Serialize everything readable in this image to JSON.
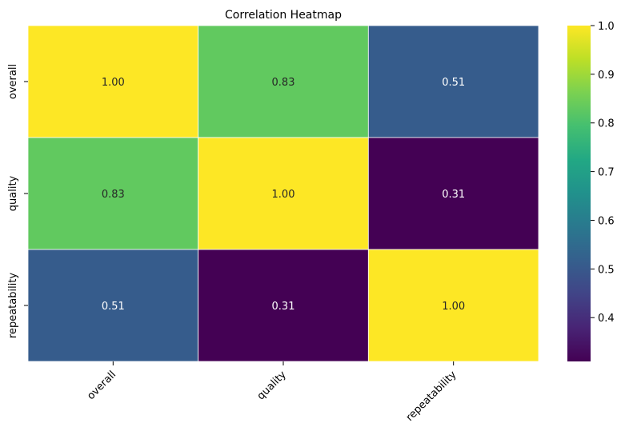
{
  "chart_data": {
    "type": "heatmap",
    "title": "Correlation Heatmap",
    "rows": [
      "overall",
      "quality",
      "repeatability"
    ],
    "columns": [
      "overall",
      "quality",
      "repeatability"
    ],
    "values": [
      [
        1.0,
        0.83,
        0.51
      ],
      [
        0.83,
        1.0,
        0.31
      ],
      [
        0.51,
        0.31,
        1.0
      ]
    ],
    "cell_labels": [
      [
        "1.00",
        "0.83",
        "0.51"
      ],
      [
        "0.83",
        "1.00",
        "0.31"
      ],
      [
        "0.51",
        "0.31",
        "1.00"
      ]
    ],
    "colorscale": "viridis",
    "colorbar": {
      "range": [
        0.31,
        1.0
      ],
      "ticks": [
        0.4,
        0.5,
        0.6,
        0.7,
        0.8,
        0.9,
        1.0
      ],
      "tick_labels": [
        "0.4",
        "0.5",
        "0.6",
        "0.7",
        "0.8",
        "0.9",
        "1.0"
      ]
    },
    "grid": false
  }
}
